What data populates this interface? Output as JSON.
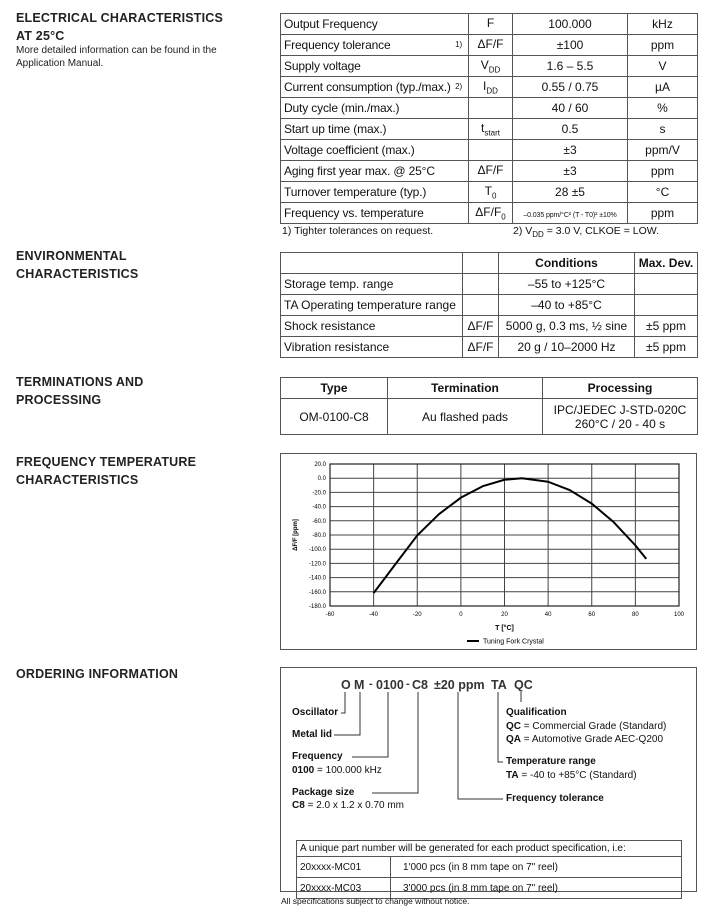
{
  "electrical": {
    "heading1": "ELECTRICAL CHARACTERISTICS",
    "heading2": "AT 25°C",
    "desc1": "More detailed information can be found in the",
    "desc2": "Application Manual.",
    "rows": [
      {
        "param": "Output Frequency",
        "note": "",
        "sym": "F",
        "sub": "",
        "value": "100.000",
        "unit": "kHz"
      },
      {
        "param": "Frequency tolerance",
        "note": "1)",
        "sym": "ΔF/F",
        "sub": "",
        "value": "±100",
        "unit": "ppm"
      },
      {
        "param": "Supply voltage",
        "note": "",
        "sym": "V",
        "sub": "DD",
        "value": "1.6 – 5.5",
        "unit": "V"
      },
      {
        "param": "Current consumption (typ./max.)",
        "note": "2)",
        "sym": "I",
        "sub": "DD",
        "value": "0.55 / 0.75",
        "unit": "µA"
      },
      {
        "param": "Duty cycle (min./max.)",
        "note": "",
        "sym": "",
        "sub": "",
        "value": "40 / 60",
        "unit": "%"
      },
      {
        "param": "Start up time (max.)",
        "note": "",
        "sym": "t",
        "sub": "start",
        "value": "0.5",
        "unit": "s"
      },
      {
        "param": "Voltage coefficient (max.)",
        "note": "",
        "sym": "",
        "sub": "",
        "value": "±3",
        "unit": "ppm/V"
      },
      {
        "param": "Aging first year max. @ 25°C",
        "note": "",
        "sym": "ΔF/F",
        "sub": "",
        "value": "±3",
        "unit": "ppm"
      },
      {
        "param": "Turnover temperature (typ.)",
        "note": "",
        "sym": "T",
        "sub": "0",
        "value": "28 ±5",
        "unit": "°C"
      },
      {
        "param": "Frequency vs. temperature",
        "note": "",
        "sym": "ΔF/F",
        "sub": "0",
        "value": "–0.035 ppm/°C² (T - T0)² ±10%",
        "unit": "ppm"
      }
    ],
    "footnote1": "1) Tighter tolerances on request.",
    "footnote2": "2) VDD = 3.0 V, CLKOE = LOW."
  },
  "environmental": {
    "heading1": "ENVIRONMENTAL",
    "heading2": "CHARACTERISTICS",
    "headers": [
      "",
      "",
      "Conditions",
      "Max. Dev."
    ],
    "rows": [
      [
        "Storage temp. range",
        "",
        "–55 to +125°C",
        ""
      ],
      [
        "TA Operating temperature range",
        "",
        "–40 to +85°C",
        ""
      ],
      [
        "Shock resistance",
        "ΔF/F",
        "5000 g, 0.3 ms, ½ sine",
        "±5 ppm"
      ],
      [
        "Vibration resistance",
        "ΔF/F",
        "20 g / 10–2000 Hz",
        "±5 ppm"
      ]
    ]
  },
  "terminations": {
    "heading1": "TERMINATIONS AND",
    "heading2": "PROCESSING",
    "headers": [
      "Type",
      "Termination",
      "Processing"
    ],
    "row": [
      "OM-0100-C8",
      "Au flashed pads",
      "IPC/JEDEC J-STD-020C",
      "260°C / 20 - 40 s"
    ]
  },
  "freqtemp": {
    "heading1": "FREQUENCY TEMPERATURE",
    "heading2": "CHARACTERISTICS"
  },
  "chart_data": {
    "type": "line",
    "xlabel": "T [°C]",
    "ylabel": "ΔF/F [ppm]",
    "xlim": [
      -60,
      100
    ],
    "ylim": [
      -180,
      20
    ],
    "xticks": [
      "-60",
      "-40",
      "-20",
      "0",
      "20",
      "40",
      "60",
      "80",
      "100"
    ],
    "yticks": [
      "20.0",
      "0.0",
      "-20.0",
      "-40.0",
      "-60.0",
      "-80.0",
      "-100.0",
      "-120.0",
      "-140.0",
      "-160.0",
      "-180.0"
    ],
    "grid": true,
    "legend_position": "bottom",
    "series": [
      {
        "name": "Tuning Fork Crystal",
        "x": [
          -40,
          -30,
          -20,
          -10,
          0,
          10,
          20,
          28,
          40,
          50,
          60,
          70,
          80,
          85
        ],
        "y": [
          -161.8,
          -121.0,
          -80.6,
          -50.5,
          -27.4,
          -11.3,
          -2.2,
          0,
          -5.0,
          -16.9,
          -35.8,
          -61.7,
          -94.6,
          -113.7
        ]
      }
    ]
  },
  "ordering": {
    "heading": "ORDERING INFORMATION",
    "code": [
      "O",
      "M",
      "-",
      "0100",
      "-",
      "C8",
      "±20 ppm",
      "TA",
      "QC"
    ],
    "oscillator": "Oscillator",
    "metal_lid": "Metal lid",
    "frequency": "Frequency",
    "frequency_key": "0100",
    "frequency_val": " = 100.000 kHz",
    "package": "Package size",
    "package_key": "C8",
    "package_val": " = 2.0 x 1.2 x 0.70 mm",
    "qualification": "Qualification",
    "qc_key": "QC",
    "qc_val": " = Commercial Grade (Standard)",
    "qa_key": "QA",
    "qa_val": " = Automotive Grade AEC-Q200",
    "temp_range": "Temperature range",
    "ta_key": "TA",
    "ta_val": " = -40 to +85°C (Standard)",
    "freq_tol": "Frequency tolerance",
    "table_header": "A unique part number will be generated for each product specification, i.e:",
    "rows": [
      [
        "20xxxx-MC01",
        "1'000 pcs  (in 8 mm tape on 7\" reel)"
      ],
      [
        "20xxxx-MC03",
        "3'000 pcs  (in 8 mm tape on 7\" reel)"
      ]
    ]
  },
  "footer": "All specifications subject to change without notice."
}
